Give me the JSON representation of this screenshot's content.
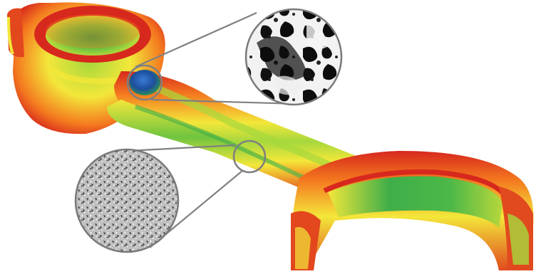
{
  "figure": {
    "subject": "connecting-rod",
    "rendering": "heat-map",
    "colors": {
      "high": "#d7281e",
      "mid_high": "#f47a1f",
      "mid": "#f3e73a",
      "mid_low": "#a6d83c",
      "low": "#3fae49",
      "hot_spot": "#1d4f9c",
      "callout_line": "#808080",
      "background": "#ffffff"
    },
    "insets": [
      {
        "name": "microstructure-coarse",
        "pattern": "black-white-blotches"
      },
      {
        "name": "microstructure-fine",
        "pattern": "grey-speckle"
      }
    ]
  }
}
